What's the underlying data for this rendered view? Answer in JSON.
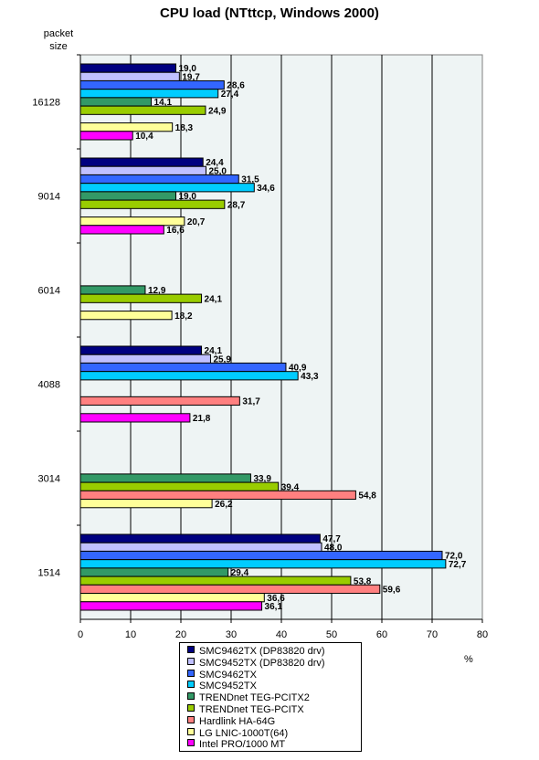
{
  "chart_data": {
    "type": "bar",
    "orientation": "horizontal",
    "title": "CPU load (NTttcp, Windows 2000)",
    "ylabel": "packet\nsize",
    "xlabel": "%",
    "xlim": [
      0,
      80
    ],
    "xticks": [
      "0",
      "10",
      "20",
      "30",
      "40",
      "50",
      "60",
      "70",
      "80"
    ],
    "grid": true,
    "legend_position": "bottom",
    "categories": [
      "16128",
      "9014",
      "6014",
      "4088",
      "3014",
      "1514"
    ],
    "series": [
      {
        "name": "SMC9462TX (DP83820 drv)",
        "color": "#000080",
        "values": [
          19.0,
          24.4,
          null,
          24.1,
          null,
          47.7
        ],
        "labels": [
          "19,0",
          "24,4",
          "",
          "24,1",
          "",
          "47,7"
        ]
      },
      {
        "name": "SMC9452TX (DP83820 drv)",
        "color": "#c0c0ff",
        "values": [
          19.7,
          25.0,
          null,
          25.9,
          null,
          48.0
        ],
        "labels": [
          "19,7",
          "25,0",
          "",
          "25,9",
          "",
          "48,0"
        ]
      },
      {
        "name": "SMC9462TX",
        "color": "#3366ff",
        "values": [
          28.6,
          31.5,
          null,
          40.9,
          null,
          72.0
        ],
        "labels": [
          "28,6",
          "31,5",
          "",
          "40,9",
          "",
          "72,0"
        ]
      },
      {
        "name": "SMC9452TX",
        "color": "#00ccff",
        "values": [
          27.4,
          34.6,
          null,
          43.3,
          null,
          72.7
        ],
        "labels": [
          "27,4",
          "34,6",
          "",
          "43,3",
          "",
          "72,7"
        ]
      },
      {
        "name": "TRENDnet TEG-PCITX2",
        "color": "#339966",
        "values": [
          14.1,
          19.0,
          12.9,
          null,
          33.9,
          29.4
        ],
        "labels": [
          "14,1",
          "19,0",
          "12,9",
          "",
          "33,9",
          "29,4"
        ]
      },
      {
        "name": "TRENDnet TEG-PCITX",
        "color": "#99cc00",
        "values": [
          24.9,
          28.7,
          24.1,
          null,
          39.4,
          53.8
        ],
        "labels": [
          "24,9",
          "28,7",
          "24,1",
          "",
          "39,4",
          "53,8"
        ]
      },
      {
        "name": "Hardlink HA-64G",
        "color": "#ff8080",
        "values": [
          null,
          null,
          null,
          31.7,
          54.8,
          59.6
        ],
        "labels": [
          "",
          "",
          "",
          "31,7",
          "54,8",
          "59,6"
        ]
      },
      {
        "name": "LG LNIC-1000T(64)",
        "color": "#ffff99",
        "values": [
          18.3,
          20.7,
          18.2,
          null,
          26.2,
          36.6
        ],
        "labels": [
          "18,3",
          "20,7",
          "18,2",
          "",
          "26,2",
          "36,6"
        ]
      },
      {
        "name": "Intel PRO/1000 MT",
        "color": "#ff00ff",
        "values": [
          10.4,
          16.6,
          null,
          21.8,
          null,
          36.1
        ],
        "labels": [
          "10,4",
          "16,6",
          "",
          "21,8",
          "",
          "36,1"
        ]
      }
    ],
    "plot_background": "#eef4f4"
  }
}
